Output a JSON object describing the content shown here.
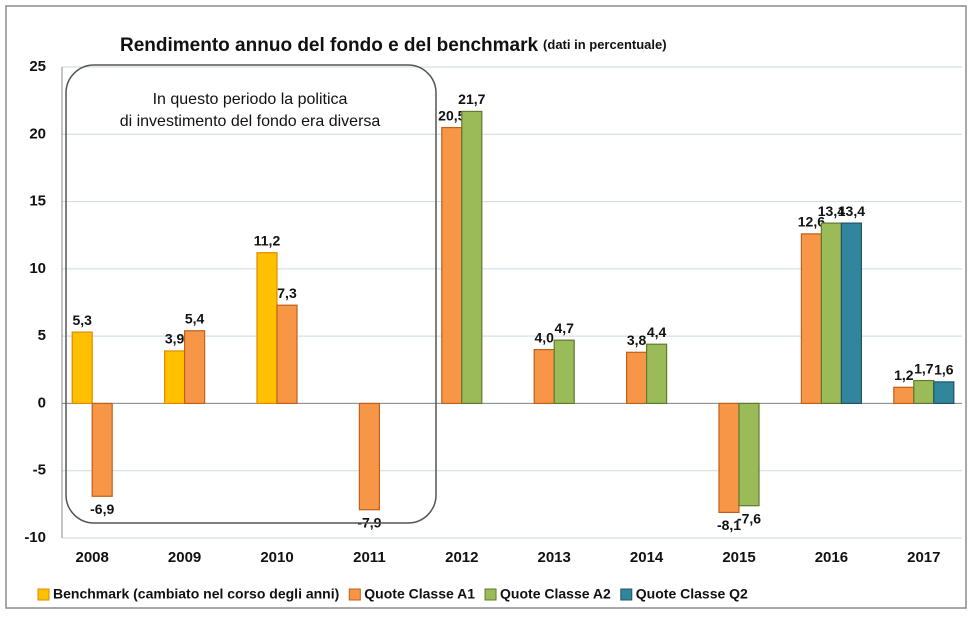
{
  "chart_data": {
    "type": "bar",
    "title": "Rendimento annuo del fondo e del benchmark",
    "subtitle": "(dati in percentuale)",
    "annotation": [
      "In questo periodo la politica",
      "di investimento del fondo era diversa"
    ],
    "categories": [
      "2008",
      "2009",
      "2010",
      "2011",
      "2012",
      "2013",
      "2014",
      "2015",
      "2016",
      "2017"
    ],
    "series": [
      {
        "name": "Benchmark (cambiato nel corso degli anni)",
        "color": "#ffc000",
        "values": [
          5.3,
          3.9,
          11.2,
          null,
          null,
          null,
          null,
          null,
          null,
          null
        ],
        "value_labels": [
          "5,3",
          "3,9",
          "11,2",
          null,
          null,
          null,
          null,
          null,
          null,
          null
        ]
      },
      {
        "name": "Quote Classe A1",
        "color": "#f79646",
        "values": [
          -6.9,
          5.4,
          7.3,
          -7.9,
          20.5,
          4.0,
          3.8,
          -8.1,
          12.6,
          1.2
        ],
        "value_labels": [
          "-6,9",
          "5,4",
          "7,3",
          "-7,9",
          "20,5",
          "4,0",
          "3,8",
          "-8,1",
          "12,6",
          "1,2"
        ]
      },
      {
        "name": "Quote Classe A2",
        "color": "#9bbb59",
        "values": [
          null,
          null,
          null,
          null,
          21.7,
          4.7,
          4.4,
          -7.6,
          13.4,
          1.7
        ],
        "value_labels": [
          null,
          null,
          null,
          null,
          "21,7",
          "4,7",
          "4,4",
          "-7,6",
          "13,4",
          "1,7"
        ]
      },
      {
        "name": "Quote Classe Q2",
        "color": "#31859c",
        "values": [
          null,
          null,
          null,
          null,
          null,
          null,
          null,
          null,
          13.4,
          1.6
        ],
        "value_labels": [
          null,
          null,
          null,
          null,
          null,
          null,
          null,
          null,
          "13,4",
          "1,6"
        ]
      }
    ],
    "ylim": [
      -10,
      25
    ],
    "yticks": [
      -10,
      -5,
      0,
      5,
      10,
      15,
      20,
      25
    ],
    "grid": true
  }
}
